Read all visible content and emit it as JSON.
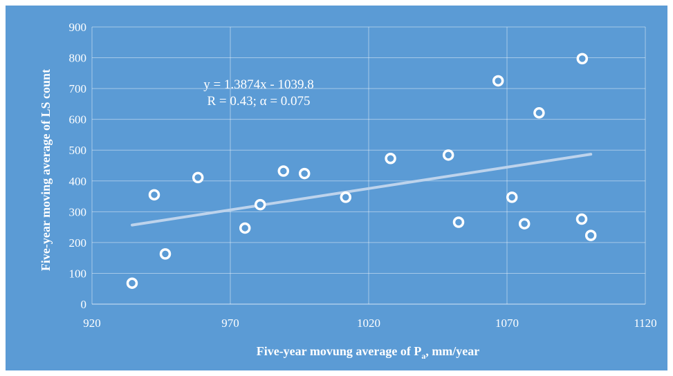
{
  "chart_data": {
    "type": "scatter",
    "title": "",
    "xlabel": "Five-year movung average of P",
    "xlabel_sub": "a",
    "xlabel_suffix": ", mm/year",
    "ylabel": "Five-year moving average of LS count",
    "xlim": [
      920,
      1120
    ],
    "ylim": [
      0,
      900
    ],
    "xticks": [
      920,
      970,
      1020,
      1070,
      1120
    ],
    "yticks": [
      0,
      100,
      200,
      300,
      400,
      500,
      600,
      700,
      800,
      900
    ],
    "grid": true,
    "points": [
      {
        "x": 934.5,
        "y": 68
      },
      {
        "x": 942.5,
        "y": 355
      },
      {
        "x": 946.5,
        "y": 163
      },
      {
        "x": 958.3,
        "y": 411
      },
      {
        "x": 975.3,
        "y": 247
      },
      {
        "x": 980.8,
        "y": 323
      },
      {
        "x": 989.2,
        "y": 432
      },
      {
        "x": 996.8,
        "y": 424
      },
      {
        "x": 1011.7,
        "y": 347
      },
      {
        "x": 1027.9,
        "y": 473
      },
      {
        "x": 1048.8,
        "y": 484
      },
      {
        "x": 1052.5,
        "y": 266
      },
      {
        "x": 1066.8,
        "y": 725
      },
      {
        "x": 1071.8,
        "y": 347
      },
      {
        "x": 1076.3,
        "y": 261
      },
      {
        "x": 1081.6,
        "y": 621
      },
      {
        "x": 1097.2,
        "y": 797
      },
      {
        "x": 1097.0,
        "y": 276
      },
      {
        "x": 1100.3,
        "y": 223
      }
    ],
    "trendline": {
      "slope": 1.3874,
      "intercept": -1039.8,
      "x_range": [
        934.5,
        1100.3
      ]
    },
    "annotation_line1": "y = 1.3874x - 1039.8",
    "annotation_line2": "R = 0.43; α = 0.075"
  }
}
